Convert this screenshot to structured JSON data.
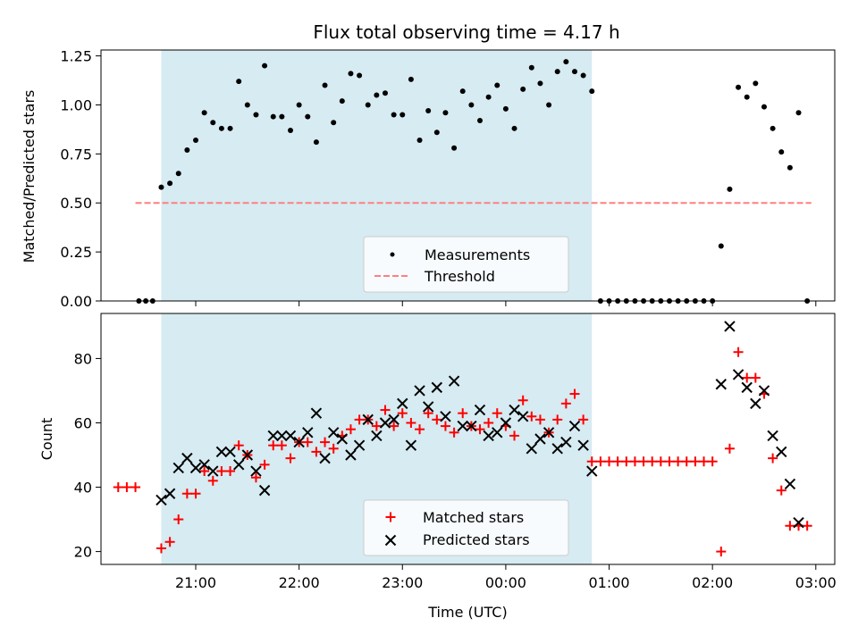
{
  "chart_data": [
    {
      "type": "scatter",
      "title": "Flux total observing time = 4.17 h",
      "xlabel": "",
      "ylabel": "Matched/Predicted stars",
      "ylim": [
        0,
        1.28
      ],
      "yticks": [
        "0.00",
        "0.25",
        "0.50",
        "0.75",
        "1.00",
        "1.25"
      ],
      "ytick_values": [
        0,
        0.25,
        0.5,
        0.75,
        1.0,
        1.25
      ],
      "shaded_region": [
        "20:40",
        "00:50"
      ],
      "threshold": {
        "name": "Threshold",
        "value": 0.5,
        "x_range": [
          "20:25",
          "03:00"
        ],
        "color": "#ff7f7f"
      },
      "series": [
        {
          "name": "Measurements",
          "marker": "dot",
          "color": "#000000",
          "points": [
            [
              "20:27",
              0
            ],
            [
              "20:31",
              0
            ],
            [
              "20:35",
              0
            ],
            [
              "20:40",
              0.58
            ],
            [
              "20:45",
              0.6
            ],
            [
              "20:50",
              0.65
            ],
            [
              "20:55",
              0.77
            ],
            [
              "21:00",
              0.82
            ],
            [
              "21:05",
              0.96
            ],
            [
              "21:10",
              0.91
            ],
            [
              "21:15",
              0.88
            ],
            [
              "21:20",
              0.88
            ],
            [
              "21:25",
              1.12
            ],
            [
              "21:30",
              1.0
            ],
            [
              "21:35",
              0.95
            ],
            [
              "21:40",
              1.2
            ],
            [
              "21:45",
              0.94
            ],
            [
              "21:50",
              0.94
            ],
            [
              "21:55",
              0.87
            ],
            [
              "22:00",
              1.0
            ],
            [
              "22:05",
              0.94
            ],
            [
              "22:10",
              0.81
            ],
            [
              "22:15",
              1.1
            ],
            [
              "22:20",
              0.91
            ],
            [
              "22:25",
              1.02
            ],
            [
              "22:30",
              1.16
            ],
            [
              "22:35",
              1.15
            ],
            [
              "22:40",
              1.0
            ],
            [
              "22:45",
              1.05
            ],
            [
              "22:50",
              1.06
            ],
            [
              "22:55",
              0.95
            ],
            [
              "23:00",
              0.95
            ],
            [
              "23:05",
              1.13
            ],
            [
              "23:10",
              0.82
            ],
            [
              "23:15",
              0.97
            ],
            [
              "23:20",
              0.86
            ],
            [
              "23:25",
              0.96
            ],
            [
              "23:30",
              0.78
            ],
            [
              "23:35",
              1.07
            ],
            [
              "23:40",
              1.0
            ],
            [
              "23:45",
              0.92
            ],
            [
              "23:50",
              1.04
            ],
            [
              "23:55",
              1.1
            ],
            [
              "00:00",
              0.98
            ],
            [
              "00:05",
              0.88
            ],
            [
              "00:10",
              1.08
            ],
            [
              "00:15",
              1.19
            ],
            [
              "00:20",
              1.11
            ],
            [
              "00:25",
              1.0
            ],
            [
              "00:30",
              1.17
            ],
            [
              "00:35",
              1.22
            ],
            [
              "00:40",
              1.17
            ],
            [
              "00:45",
              1.15
            ],
            [
              "00:50",
              1.07
            ],
            [
              "00:55",
              0
            ],
            [
              "01:00",
              0
            ],
            [
              "01:05",
              0
            ],
            [
              "01:10",
              0
            ],
            [
              "01:15",
              0
            ],
            [
              "01:20",
              0
            ],
            [
              "01:25",
              0
            ],
            [
              "01:30",
              0
            ],
            [
              "01:35",
              0
            ],
            [
              "01:40",
              0
            ],
            [
              "01:45",
              0
            ],
            [
              "01:50",
              0
            ],
            [
              "01:55",
              0
            ],
            [
              "02:00",
              0
            ],
            [
              "02:05",
              0.28
            ],
            [
              "02:10",
              0.57
            ],
            [
              "02:15",
              1.09
            ],
            [
              "02:20",
              1.04
            ],
            [
              "02:25",
              1.11
            ],
            [
              "02:30",
              0.99
            ],
            [
              "02:35",
              0.88
            ],
            [
              "02:40",
              0.76
            ],
            [
              "02:45",
              0.68
            ],
            [
              "02:50",
              0.96
            ],
            [
              "02:55",
              0
            ]
          ]
        }
      ],
      "legend": {
        "position": "lower center",
        "entries": [
          "Measurements",
          "Threshold"
        ]
      }
    },
    {
      "type": "scatter",
      "title": "",
      "xlabel": "Time (UTC)",
      "ylabel": "Count",
      "ylim": [
        16,
        94
      ],
      "yticks": [
        "20",
        "40",
        "60",
        "80"
      ],
      "ytick_values": [
        20,
        40,
        60,
        80
      ],
      "xticks": [
        "21:00",
        "22:00",
        "23:00",
        "00:00",
        "01:00",
        "02:00",
        "03:00"
      ],
      "xlim": [
        "20:05",
        "03:11"
      ],
      "shaded_region": [
        "20:40",
        "00:50"
      ],
      "series": [
        {
          "name": "Matched stars",
          "marker": "plus",
          "color": "#ff0000",
          "points": [
            [
              "20:15",
              40
            ],
            [
              "20:20",
              40
            ],
            [
              "20:25",
              40
            ],
            [
              "20:40",
              21
            ],
            [
              "20:45",
              23
            ],
            [
              "20:50",
              30
            ],
            [
              "20:55",
              38
            ],
            [
              "21:00",
              38
            ],
            [
              "21:05",
              45
            ],
            [
              "21:10",
              42
            ],
            [
              "21:15",
              45
            ],
            [
              "21:20",
              45
            ],
            [
              "21:25",
              53
            ],
            [
              "21:30",
              50
            ],
            [
              "21:35",
              43
            ],
            [
              "21:40",
              47
            ],
            [
              "21:45",
              53
            ],
            [
              "21:50",
              53
            ],
            [
              "21:55",
              49
            ],
            [
              "22:00",
              54
            ],
            [
              "22:05",
              54
            ],
            [
              "22:10",
              51
            ],
            [
              "22:15",
              54
            ],
            [
              "22:20",
              52
            ],
            [
              "22:25",
              56
            ],
            [
              "22:30",
              58
            ],
            [
              "22:35",
              61
            ],
            [
              "22:40",
              61
            ],
            [
              "22:45",
              59
            ],
            [
              "22:50",
              64
            ],
            [
              "22:55",
              59
            ],
            [
              "23:00",
              63
            ],
            [
              "23:05",
              60
            ],
            [
              "23:10",
              58
            ],
            [
              "23:15",
              63
            ],
            [
              "23:20",
              61
            ],
            [
              "23:25",
              59
            ],
            [
              "23:30",
              57
            ],
            [
              "23:35",
              63
            ],
            [
              "23:40",
              59
            ],
            [
              "23:45",
              58
            ],
            [
              "23:50",
              60
            ],
            [
              "23:55",
              63
            ],
            [
              "00:00",
              59
            ],
            [
              "00:05",
              56
            ],
            [
              "00:10",
              67
            ],
            [
              "00:15",
              62
            ],
            [
              "00:20",
              61
            ],
            [
              "00:25",
              57
            ],
            [
              "00:30",
              61
            ],
            [
              "00:35",
              66
            ],
            [
              "00:40",
              69
            ],
            [
              "00:45",
              61
            ],
            [
              "00:50",
              48
            ],
            [
              "00:55",
              48
            ],
            [
              "01:00",
              48
            ],
            [
              "01:05",
              48
            ],
            [
              "01:10",
              48
            ],
            [
              "01:15",
              48
            ],
            [
              "01:20",
              48
            ],
            [
              "01:25",
              48
            ],
            [
              "01:30",
              48
            ],
            [
              "01:35",
              48
            ],
            [
              "01:40",
              48
            ],
            [
              "01:45",
              48
            ],
            [
              "01:50",
              48
            ],
            [
              "01:55",
              48
            ],
            [
              "02:00",
              48
            ],
            [
              "02:05",
              20
            ],
            [
              "02:10",
              52
            ],
            [
              "02:15",
              82
            ],
            [
              "02:20",
              74
            ],
            [
              "02:25",
              74
            ],
            [
              "02:30",
              69
            ],
            [
              "02:35",
              49
            ],
            [
              "02:40",
              39
            ],
            [
              "02:45",
              28
            ],
            [
              "02:50",
              28
            ],
            [
              "02:55",
              28
            ]
          ]
        },
        {
          "name": "Predicted stars",
          "marker": "x",
          "color": "#000000",
          "points": [
            [
              "20:40",
              36
            ],
            [
              "20:45",
              38
            ],
            [
              "20:50",
              46
            ],
            [
              "20:55",
              49
            ],
            [
              "21:00",
              46
            ],
            [
              "21:05",
              47
            ],
            [
              "21:10",
              45
            ],
            [
              "21:15",
              51
            ],
            [
              "21:20",
              51
            ],
            [
              "21:25",
              47
            ],
            [
              "21:30",
              50
            ],
            [
              "21:35",
              45
            ],
            [
              "21:40",
              39
            ],
            [
              "21:45",
              56
            ],
            [
              "21:50",
              56
            ],
            [
              "21:55",
              56
            ],
            [
              "22:00",
              54
            ],
            [
              "22:05",
              57
            ],
            [
              "22:10",
              63
            ],
            [
              "22:15",
              49
            ],
            [
              "22:20",
              57
            ],
            [
              "22:25",
              55
            ],
            [
              "22:30",
              50
            ],
            [
              "22:35",
              53
            ],
            [
              "22:40",
              61
            ],
            [
              "22:45",
              56
            ],
            [
              "22:50",
              60
            ],
            [
              "22:55",
              61
            ],
            [
              "23:00",
              66
            ],
            [
              "23:05",
              53
            ],
            [
              "23:10",
              70
            ],
            [
              "23:15",
              65
            ],
            [
              "23:20",
              71
            ],
            [
              "23:25",
              62
            ],
            [
              "23:30",
              73
            ],
            [
              "23:35",
              59
            ],
            [
              "23:40",
              59
            ],
            [
              "23:45",
              64
            ],
            [
              "23:50",
              56
            ],
            [
              "23:55",
              57
            ],
            [
              "00:00",
              60
            ],
            [
              "00:05",
              64
            ],
            [
              "00:10",
              62
            ],
            [
              "00:15",
              52
            ],
            [
              "00:20",
              55
            ],
            [
              "00:25",
              57
            ],
            [
              "00:30",
              52
            ],
            [
              "00:35",
              54
            ],
            [
              "00:40",
              59
            ],
            [
              "00:45",
              53
            ],
            [
              "00:50",
              45
            ],
            [
              "02:05",
              72
            ],
            [
              "02:10",
              90
            ],
            [
              "02:15",
              75
            ],
            [
              "02:20",
              71
            ],
            [
              "02:25",
              66
            ],
            [
              "02:30",
              70
            ],
            [
              "02:35",
              56
            ],
            [
              "02:40",
              51
            ],
            [
              "02:45",
              41
            ],
            [
              "02:50",
              29
            ]
          ]
        }
      ],
      "legend": {
        "position": "lower center",
        "entries": [
          "Matched stars",
          "Predicted stars"
        ]
      }
    }
  ],
  "style": {
    "shade_color": "#add8e6",
    "shade_opacity": 0.5
  }
}
